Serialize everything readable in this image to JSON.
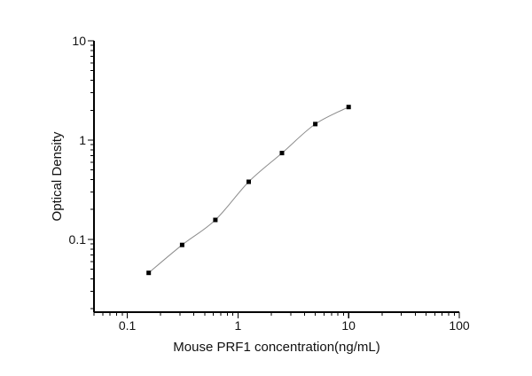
{
  "chart_data": {
    "type": "scatter",
    "xlabel": "Mouse PRF1 concentration(ng/mL)",
    "ylabel": "Optical Density",
    "x_scale": "log",
    "y_scale": "log",
    "x_range": [
      0.05,
      100
    ],
    "y_range": [
      0.0185,
      10
    ],
    "grid": false,
    "legend": "none",
    "x": [
      0.156,
      0.313,
      0.625,
      1.25,
      2.5,
      5,
      10
    ],
    "y": [
      0.046,
      0.088,
      0.157,
      0.38,
      0.74,
      1.45,
      2.15
    ],
    "x_major_ticks": {
      "values": [
        0.1,
        1,
        10,
        100
      ],
      "labels": [
        "0.1",
        "1",
        "10",
        "100"
      ]
    },
    "y_major_ticks": {
      "values": [
        10,
        1,
        0.1
      ],
      "labels": [
        "10",
        "1",
        "0.1"
      ]
    },
    "marker_shape": "square",
    "marker_color": "#000000",
    "line_color": "#8c8c8c",
    "axis_color": "#000000",
    "background_color": "#ffffff"
  }
}
